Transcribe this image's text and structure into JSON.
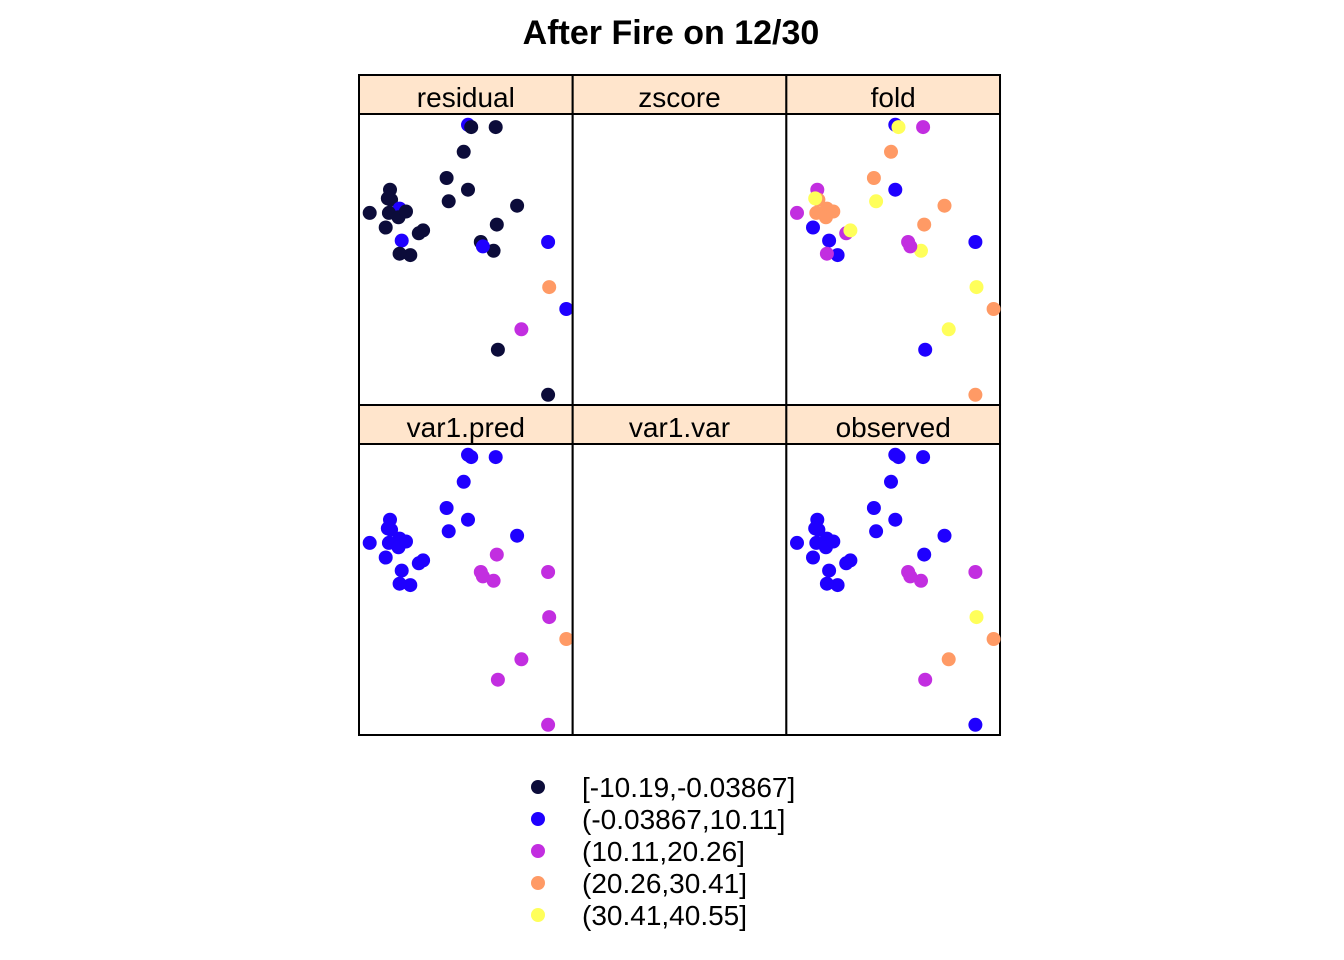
{
  "chart_data": {
    "type": "scatter",
    "title": "After Fire on 12/30",
    "panel_layout": "2 rows x 3 columns",
    "panels": [
      {
        "name": "residual",
        "points": [
          {
            "x": 0.05,
            "y": 0.66,
            "b": 0
          },
          {
            "x": 0.51,
            "y": 0.963,
            "b": 1
          },
          {
            "x": 0.525,
            "y": 0.955,
            "b": 0
          },
          {
            "x": 0.64,
            "y": 0.955,
            "b": 0
          },
          {
            "x": 0.49,
            "y": 0.87,
            "b": 0
          },
          {
            "x": 0.41,
            "y": 0.78,
            "b": 0
          },
          {
            "x": 0.51,
            "y": 0.74,
            "b": 0
          },
          {
            "x": 0.42,
            "y": 0.7,
            "b": 0
          },
          {
            "x": 0.74,
            "y": 0.685,
            "b": 0
          },
          {
            "x": 0.145,
            "y": 0.74,
            "b": 0
          },
          {
            "x": 0.15,
            "y": 0.705,
            "b": 0
          },
          {
            "x": 0.135,
            "y": 0.71,
            "b": 0
          },
          {
            "x": 0.19,
            "y": 0.675,
            "b": 1
          },
          {
            "x": 0.14,
            "y": 0.66,
            "b": 0
          },
          {
            "x": 0.185,
            "y": 0.645,
            "b": 0
          },
          {
            "x": 0.22,
            "y": 0.665,
            "b": 0
          },
          {
            "x": 0.125,
            "y": 0.61,
            "b": 0
          },
          {
            "x": 0.28,
            "y": 0.59,
            "b": 0
          },
          {
            "x": 0.3,
            "y": 0.6,
            "b": 0
          },
          {
            "x": 0.2,
            "y": 0.565,
            "b": 1
          },
          {
            "x": 0.24,
            "y": 0.515,
            "b": 0
          },
          {
            "x": 0.19,
            "y": 0.52,
            "b": 0
          },
          {
            "x": 0.645,
            "y": 0.62,
            "b": 0
          },
          {
            "x": 0.63,
            "y": 0.53,
            "b": 0
          },
          {
            "x": 0.57,
            "y": 0.56,
            "b": 0
          },
          {
            "x": 0.58,
            "y": 0.545,
            "b": 1
          },
          {
            "x": 0.885,
            "y": 0.56,
            "b": 1
          },
          {
            "x": 0.89,
            "y": 0.405,
            "b": 3
          },
          {
            "x": 0.97,
            "y": 0.33,
            "b": 1
          },
          {
            "x": 0.76,
            "y": 0.26,
            "b": 2
          },
          {
            "x": 0.65,
            "y": 0.19,
            "b": 0
          },
          {
            "x": 0.885,
            "y": 0.035,
            "b": 0
          }
        ]
      },
      {
        "name": "zscore",
        "points": []
      },
      {
        "name": "fold",
        "points": [
          {
            "x": 0.05,
            "y": 0.66,
            "b": 2
          },
          {
            "x": 0.51,
            "y": 0.963,
            "b": 1
          },
          {
            "x": 0.525,
            "y": 0.955,
            "b": 4
          },
          {
            "x": 0.64,
            "y": 0.955,
            "b": 2
          },
          {
            "x": 0.49,
            "y": 0.87,
            "b": 3
          },
          {
            "x": 0.41,
            "y": 0.78,
            "b": 3
          },
          {
            "x": 0.51,
            "y": 0.74,
            "b": 1
          },
          {
            "x": 0.42,
            "y": 0.7,
            "b": 4
          },
          {
            "x": 0.74,
            "y": 0.685,
            "b": 3
          },
          {
            "x": 0.145,
            "y": 0.74,
            "b": 2
          },
          {
            "x": 0.15,
            "y": 0.705,
            "b": 3
          },
          {
            "x": 0.135,
            "y": 0.71,
            "b": 4
          },
          {
            "x": 0.19,
            "y": 0.675,
            "b": 3
          },
          {
            "x": 0.14,
            "y": 0.66,
            "b": 3
          },
          {
            "x": 0.185,
            "y": 0.645,
            "b": 3
          },
          {
            "x": 0.22,
            "y": 0.665,
            "b": 3
          },
          {
            "x": 0.125,
            "y": 0.61,
            "b": 1
          },
          {
            "x": 0.28,
            "y": 0.59,
            "b": 2
          },
          {
            "x": 0.3,
            "y": 0.6,
            "b": 4
          },
          {
            "x": 0.2,
            "y": 0.565,
            "b": 1
          },
          {
            "x": 0.24,
            "y": 0.515,
            "b": 1
          },
          {
            "x": 0.19,
            "y": 0.52,
            "b": 2
          },
          {
            "x": 0.645,
            "y": 0.62,
            "b": 3
          },
          {
            "x": 0.63,
            "y": 0.53,
            "b": 4
          },
          {
            "x": 0.57,
            "y": 0.56,
            "b": 2
          },
          {
            "x": 0.58,
            "y": 0.545,
            "b": 2
          },
          {
            "x": 0.885,
            "y": 0.56,
            "b": 1
          },
          {
            "x": 0.89,
            "y": 0.405,
            "b": 4
          },
          {
            "x": 0.97,
            "y": 0.33,
            "b": 3
          },
          {
            "x": 0.76,
            "y": 0.26,
            "b": 4
          },
          {
            "x": 0.65,
            "y": 0.19,
            "b": 1
          },
          {
            "x": 0.885,
            "y": 0.035,
            "b": 3
          }
        ]
      },
      {
        "name": "var1.pred",
        "points": [
          {
            "x": 0.05,
            "y": 0.66,
            "b": 1
          },
          {
            "x": 0.51,
            "y": 0.963,
            "b": 1
          },
          {
            "x": 0.525,
            "y": 0.955,
            "b": 1
          },
          {
            "x": 0.64,
            "y": 0.955,
            "b": 1
          },
          {
            "x": 0.49,
            "y": 0.87,
            "b": 1
          },
          {
            "x": 0.41,
            "y": 0.78,
            "b": 1
          },
          {
            "x": 0.51,
            "y": 0.74,
            "b": 1
          },
          {
            "x": 0.42,
            "y": 0.7,
            "b": 1
          },
          {
            "x": 0.74,
            "y": 0.685,
            "b": 1
          },
          {
            "x": 0.145,
            "y": 0.74,
            "b": 1
          },
          {
            "x": 0.15,
            "y": 0.705,
            "b": 1
          },
          {
            "x": 0.135,
            "y": 0.71,
            "b": 1
          },
          {
            "x": 0.19,
            "y": 0.675,
            "b": 1
          },
          {
            "x": 0.14,
            "y": 0.66,
            "b": 1
          },
          {
            "x": 0.185,
            "y": 0.645,
            "b": 1
          },
          {
            "x": 0.22,
            "y": 0.665,
            "b": 1
          },
          {
            "x": 0.125,
            "y": 0.61,
            "b": 1
          },
          {
            "x": 0.28,
            "y": 0.59,
            "b": 1
          },
          {
            "x": 0.3,
            "y": 0.6,
            "b": 1
          },
          {
            "x": 0.2,
            "y": 0.565,
            "b": 1
          },
          {
            "x": 0.24,
            "y": 0.515,
            "b": 1
          },
          {
            "x": 0.19,
            "y": 0.52,
            "b": 1
          },
          {
            "x": 0.645,
            "y": 0.62,
            "b": 2
          },
          {
            "x": 0.63,
            "y": 0.53,
            "b": 2
          },
          {
            "x": 0.57,
            "y": 0.56,
            "b": 2
          },
          {
            "x": 0.58,
            "y": 0.545,
            "b": 2
          },
          {
            "x": 0.885,
            "y": 0.56,
            "b": 2
          },
          {
            "x": 0.89,
            "y": 0.405,
            "b": 2
          },
          {
            "x": 0.97,
            "y": 0.33,
            "b": 3
          },
          {
            "x": 0.76,
            "y": 0.26,
            "b": 2
          },
          {
            "x": 0.65,
            "y": 0.19,
            "b": 2
          },
          {
            "x": 0.885,
            "y": 0.035,
            "b": 2
          }
        ]
      },
      {
        "name": "var1.var",
        "points": []
      },
      {
        "name": "observed",
        "points": [
          {
            "x": 0.05,
            "y": 0.66,
            "b": 1
          },
          {
            "x": 0.51,
            "y": 0.963,
            "b": 1
          },
          {
            "x": 0.525,
            "y": 0.955,
            "b": 1
          },
          {
            "x": 0.64,
            "y": 0.955,
            "b": 1
          },
          {
            "x": 0.49,
            "y": 0.87,
            "b": 1
          },
          {
            "x": 0.41,
            "y": 0.78,
            "b": 1
          },
          {
            "x": 0.51,
            "y": 0.74,
            "b": 1
          },
          {
            "x": 0.42,
            "y": 0.7,
            "b": 1
          },
          {
            "x": 0.74,
            "y": 0.685,
            "b": 1
          },
          {
            "x": 0.145,
            "y": 0.74,
            "b": 1
          },
          {
            "x": 0.15,
            "y": 0.705,
            "b": 1
          },
          {
            "x": 0.135,
            "y": 0.71,
            "b": 1
          },
          {
            "x": 0.19,
            "y": 0.675,
            "b": 1
          },
          {
            "x": 0.14,
            "y": 0.66,
            "b": 1
          },
          {
            "x": 0.185,
            "y": 0.645,
            "b": 1
          },
          {
            "x": 0.22,
            "y": 0.665,
            "b": 1
          },
          {
            "x": 0.125,
            "y": 0.61,
            "b": 1
          },
          {
            "x": 0.28,
            "y": 0.59,
            "b": 1
          },
          {
            "x": 0.3,
            "y": 0.6,
            "b": 1
          },
          {
            "x": 0.2,
            "y": 0.565,
            "b": 1
          },
          {
            "x": 0.24,
            "y": 0.515,
            "b": 1
          },
          {
            "x": 0.19,
            "y": 0.52,
            "b": 1
          },
          {
            "x": 0.645,
            "y": 0.62,
            "b": 1
          },
          {
            "x": 0.63,
            "y": 0.53,
            "b": 2
          },
          {
            "x": 0.57,
            "y": 0.56,
            "b": 2
          },
          {
            "x": 0.58,
            "y": 0.545,
            "b": 2
          },
          {
            "x": 0.885,
            "y": 0.56,
            "b": 2
          },
          {
            "x": 0.89,
            "y": 0.405,
            "b": 4
          },
          {
            "x": 0.97,
            "y": 0.33,
            "b": 3
          },
          {
            "x": 0.76,
            "y": 0.26,
            "b": 3
          },
          {
            "x": 0.65,
            "y": 0.19,
            "b": 2
          },
          {
            "x": 0.885,
            "y": 0.035,
            "b": 1
          }
        ]
      }
    ],
    "legend": {
      "placement": "bottom",
      "entries": [
        {
          "label": "[-10.19,-0.03867]",
          "color": "#0c0c3a"
        },
        {
          "label": "(-0.03867,10.11]",
          "color": "#1f00ff"
        },
        {
          "label": "(10.11,20.26]",
          "color": "#c22ee0"
        },
        {
          "label": "(20.26,30.41]",
          "color": "#ff9a65"
        },
        {
          "label": "(30.41,40.55]",
          "color": "#ffff5a"
        }
      ]
    },
    "strip_color": "#ffe5cc",
    "grid": false
  }
}
